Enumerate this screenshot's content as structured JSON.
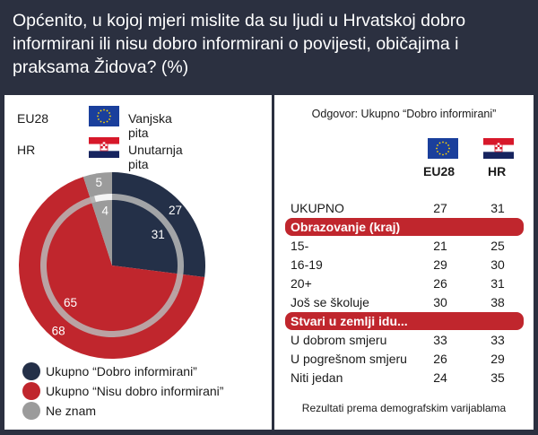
{
  "title": "Općenito, u kojoj mjeri mislite da su ljudi u Hrvatskoj dobro informirani ili nisu dobro informirani o povijesti, običajima i praksama Židova? (%)",
  "colors": {
    "dark": "#243048",
    "red": "#c0262d",
    "grey": "#9b9b9b",
    "eu_blue": "#1a3f9c",
    "hr_red": "#d7182a",
    "hr_white": "#ffffff",
    "hr_blue": "#17245f"
  },
  "legend_top": [
    {
      "code": "EU28",
      "flag": "eu-flag-icon",
      "desc": "Vanjska pita"
    },
    {
      "code": "HR",
      "flag": "croatia-flag-icon",
      "desc": "Unutarnja pita"
    }
  ],
  "chart_data": {
    "type": "pie",
    "series": [
      {
        "name": "EU28",
        "values": [
          27,
          68,
          5
        ]
      },
      {
        "name": "HR",
        "values": [
          31,
          65,
          4
        ]
      }
    ],
    "categories": [
      "Ukupno “Dobro informirani”",
      "Ukupno “Nisu dobro informirani”",
      "Ne znam"
    ]
  },
  "legend_bottom": [
    {
      "label": "Ukupno “Dobro informirani”"
    },
    {
      "label": "Ukupno “Nisu dobro informirani”"
    },
    {
      "label": "Ne znam"
    }
  ],
  "table": {
    "title": "Odgovor: Ukupno “Dobro informirani”",
    "col1": "EU28",
    "col2": "HR",
    "rows": [
      {
        "label": "UKUPNO",
        "v1": "27",
        "v2": "31"
      },
      {
        "section": "Obrazovanje (kraj)"
      },
      {
        "label": "15-",
        "v1": "21",
        "v2": "25"
      },
      {
        "label": "16-19",
        "v1": "29",
        "v2": "30"
      },
      {
        "label": "20+",
        "v1": "26",
        "v2": "31"
      },
      {
        "label": "Još se školuje",
        "v1": "30",
        "v2": "38"
      },
      {
        "section": "Stvari u zemlji idu..."
      },
      {
        "label": "U dobrom smjeru",
        "v1": "33",
        "v2": "33"
      },
      {
        "label": "U pogrešnom smjeru",
        "v1": "26",
        "v2": "29"
      },
      {
        "label": "Niti jedan",
        "v1": "24",
        "v2": "35"
      }
    ],
    "footer": "Rezultati prema demografskim varijablama"
  }
}
